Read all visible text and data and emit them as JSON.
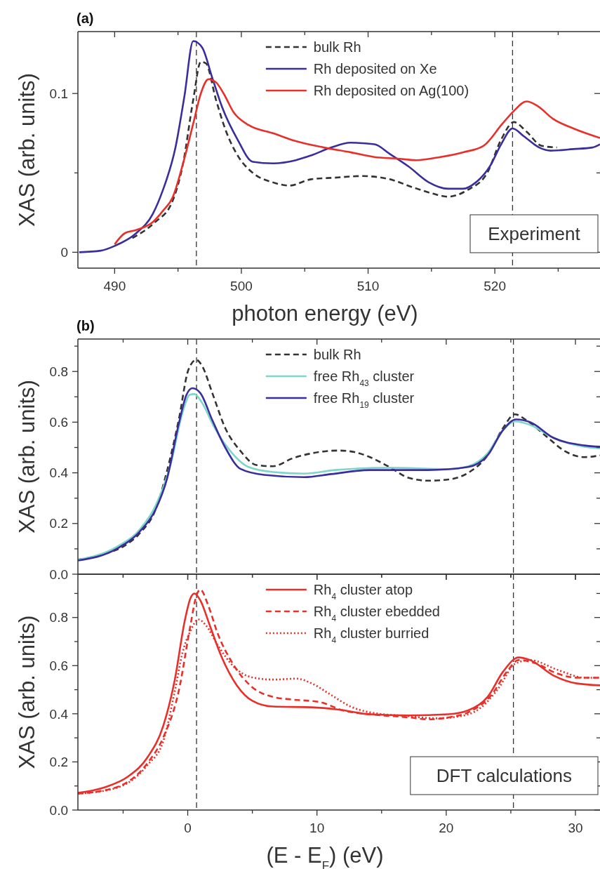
{
  "chart_data": [
    {
      "type": "line",
      "title": "(a)",
      "xlabel": "photon energy (eV)",
      "ylabel": "XAS (arb. units)",
      "xlim": [
        487.1,
        528.3
      ],
      "ylim": [
        -0.01,
        0.139
      ],
      "xticks": [
        490,
        {
          "value": 495,
          "label": null
        },
        500,
        {
          "value": 505,
          "label": null
        },
        510,
        {
          "value": 515,
          "label": null
        },
        520,
        {
          "value": 525,
          "label": null
        }
      ],
      "yticks": [
        0,
        {
          "value": 0.05,
          "label": null
        },
        0.1
      ],
      "legend": "top",
      "annotations": [
        "Experiment"
      ],
      "ref_lines": [
        {
          "axis": "x",
          "value": 496.45,
          "color": "#333333",
          "line_style": "dashed"
        },
        {
          "axis": "x",
          "value": 521.4,
          "color": "#333333",
          "line_style": "dashed"
        }
      ],
      "series": [
        {
          "name": "bulk Rh",
          "color": "#333333",
          "line_style": "dashed",
          "x": [
            491.4,
            493.2,
            494.5,
            495.4,
            496.2,
            496.8,
            497.2,
            498.0,
            498.8,
            499.7,
            500.9,
            502.5,
            503.8,
            505.5,
            507.4,
            509.5,
            511.7,
            513.5,
            515.1,
            516.3,
            517.8,
            519.4,
            520.5,
            521.5,
            522.5,
            523.7,
            524.9
          ],
          "values": [
            0.009,
            0.019,
            0.031,
            0.056,
            0.096,
            0.12,
            0.119,
            0.096,
            0.076,
            0.061,
            0.05,
            0.044,
            0.042,
            0.046,
            0.047,
            0.048,
            0.046,
            0.041,
            0.037,
            0.035,
            0.039,
            0.05,
            0.071,
            0.082,
            0.076,
            0.067,
            0.066
          ]
        },
        {
          "name": "Rh deposited on Xe",
          "color": "#3a2d9c",
          "line_style": "solid",
          "x": [
            487.2,
            488.9,
            490.0,
            491.7,
            493.0,
            493.8,
            494.8,
            495.5,
            496.2,
            496.9,
            497.7,
            498.5,
            499.7,
            500.9,
            502.5,
            504.3,
            505.5,
            507.1,
            508.6,
            510.5,
            511.7,
            513.2,
            514.8,
            516.3,
            517.5,
            518.5,
            519.6,
            520.5,
            521.4,
            522.3,
            523.5,
            524.4,
            526.2,
            527.7,
            528.3
          ],
          "values": [
            0,
            0.001,
            0.004,
            0.012,
            0.024,
            0.039,
            0.066,
            0.098,
            0.133,
            0.129,
            0.11,
            0.091,
            0.071,
            0.057,
            0.056,
            0.058,
            0.061,
            0.066,
            0.069,
            0.068,
            0.062,
            0.054,
            0.044,
            0.04,
            0.04,
            0.044,
            0.054,
            0.068,
            0.078,
            0.073,
            0.066,
            0.064,
            0.065,
            0.066,
            0.068
          ]
        },
        {
          "name": "Rh deposited on Ag(100)",
          "color": "#e8302a",
          "line_style": "solid",
          "x": [
            490.0,
            490.8,
            491.7,
            493.0,
            493.8,
            494.6,
            495.4,
            496.2,
            496.8,
            497.4,
            498.0,
            498.6,
            499.4,
            500.6,
            502.5,
            504.3,
            506.5,
            508.6,
            510.5,
            512.3,
            513.8,
            515.7,
            517.5,
            519.1,
            520.6,
            521.5,
            522.5,
            523.4,
            524.6,
            526.2,
            528.3
          ],
          "values": [
            0.005,
            0.012,
            0.014,
            0.019,
            0.026,
            0.035,
            0.056,
            0.081,
            0.1,
            0.109,
            0.107,
            0.1,
            0.088,
            0.08,
            0.075,
            0.07,
            0.066,
            0.063,
            0.06,
            0.059,
            0.058,
            0.06,
            0.063,
            0.067,
            0.081,
            0.089,
            0.095,
            0.092,
            0.084,
            0.078,
            0.072
          ]
        }
      ]
    },
    {
      "type": "line",
      "title": "(b)",
      "ylabel": "XAS (arb. units)",
      "xlim": [
        -8.5,
        31.9
      ],
      "ylim": [
        0,
        0.928
      ],
      "tick_labels": "y",
      "xticks": [
        {
          "value": -5,
          "label": null
        },
        0,
        {
          "value": 5,
          "label": null
        },
        10,
        {
          "value": 15,
          "label": null
        },
        20,
        {
          "value": 25,
          "label": null
        },
        30
      ],
      "yticks": [
        {
          "value": 0,
          "label": "0.0"
        },
        {
          "value": 0.1,
          "label": null
        },
        0.2,
        {
          "value": 0.3,
          "label": null
        },
        0.4,
        {
          "value": 0.5,
          "label": null
        },
        0.6,
        {
          "value": 0.7,
          "label": null
        },
        0.8,
        {
          "value": 0.9,
          "label": null
        }
      ],
      "legend": "top",
      "ref_lines": [
        {
          "axis": "x",
          "value": 0.68,
          "color": "#333333",
          "line_style": "dashed"
        },
        {
          "axis": "x",
          "value": 25.2,
          "color": "#333333",
          "line_style": "dashed"
        }
      ],
      "series": [
        {
          "name": "bulk Rh",
          "color": "#333333",
          "line_style": "dashed",
          "x": [
            -8.5,
            -6.7,
            -4.9,
            -3.7,
            -2.5,
            -1.6,
            -0.7,
            0.06,
            0.66,
            1.1,
            1.9,
            2.9,
            4.1,
            5.3,
            6.6,
            8.1,
            9.6,
            11.7,
            12.9,
            14.1,
            15.6,
            17.1,
            18.6,
            20.2,
            21.7,
            23.2,
            24.4,
            25.3,
            26.2,
            27.7,
            29.2,
            30.7,
            31.9
          ],
          "values": [
            0.057,
            0.077,
            0.112,
            0.162,
            0.254,
            0.408,
            0.608,
            0.808,
            0.846,
            0.823,
            0.715,
            0.577,
            0.485,
            0.431,
            0.426,
            0.457,
            0.477,
            0.488,
            0.482,
            0.462,
            0.423,
            0.38,
            0.369,
            0.374,
            0.4,
            0.469,
            0.577,
            0.631,
            0.608,
            0.546,
            0.485,
            0.462,
            0.469
          ]
        },
        {
          "name": "free Rh$_{43}$ cluster",
          "color": "#7dd6c9",
          "line_style": "solid",
          "x": [
            -8.5,
            -5.5,
            -3.7,
            -2.5,
            -1.3,
            -0.4,
            0.15,
            0.51,
            1.1,
            2.0,
            3.2,
            4.7,
            6.6,
            9.0,
            11.4,
            15.6,
            20.2,
            21.7,
            23.2,
            24.4,
            25.3,
            26.5,
            28.3,
            30.7,
            31.9
          ],
          "values": [
            0.057,
            0.108,
            0.177,
            0.269,
            0.438,
            0.638,
            0.708,
            0.711,
            0.677,
            0.585,
            0.492,
            0.423,
            0.403,
            0.397,
            0.411,
            0.42,
            0.415,
            0.426,
            0.477,
            0.569,
            0.603,
            0.589,
            0.538,
            0.503,
            0.497
          ]
        },
        {
          "name": "free Rh$_{19}$ cluster",
          "color": "#3a2d9c",
          "line_style": "solid",
          "x": [
            -8.5,
            -5.5,
            -3.7,
            -2.5,
            -1.6,
            -0.7,
            -0.1,
            0.36,
            0.97,
            1.9,
            2.9,
            4.1,
            5.9,
            9.0,
            11.1,
            14.1,
            18.6,
            21.7,
            23.2,
            24.4,
            25.4,
            26.5,
            28.3,
            30.7,
            31.9
          ],
          "values": [
            0.054,
            0.1,
            0.169,
            0.254,
            0.377,
            0.592,
            0.708,
            0.734,
            0.715,
            0.608,
            0.5,
            0.415,
            0.392,
            0.383,
            0.395,
            0.411,
            0.411,
            0.423,
            0.469,
            0.569,
            0.611,
            0.6,
            0.538,
            0.508,
            0.503
          ]
        }
      ]
    },
    {
      "type": "line",
      "xlabel": "(E - E$_{F}$) (eV)",
      "ylabel": "XAS (arb. units)",
      "xlim": [
        -8.5,
        31.9
      ],
      "ylim": [
        0,
        0.98
      ],
      "xticks": [
        {
          "value": -5,
          "label": null
        },
        0,
        {
          "value": 5,
          "label": null
        },
        10,
        {
          "value": 15,
          "label": null
        },
        20,
        {
          "value": 25,
          "label": null
        },
        30
      ],
      "yticks": [
        {
          "value": 0,
          "label": "0.0"
        },
        {
          "value": 0.1,
          "label": null
        },
        0.2,
        {
          "value": 0.3,
          "label": null
        },
        0.4,
        {
          "value": 0.5,
          "label": null
        },
        0.6,
        {
          "value": 0.7,
          "label": null
        },
        0.8,
        {
          "value": 0.9,
          "label": null
        }
      ],
      "legend": "top",
      "annotations": [
        "DFT calculations"
      ],
      "ref_lines": [
        {
          "axis": "x",
          "value": 0.68,
          "color": "#333333",
          "line_style": "dashed"
        },
        {
          "axis": "x",
          "value": 25.2,
          "color": "#333333",
          "line_style": "dashed"
        }
      ],
      "series": [
        {
          "name": "Rh$_{4}$ cluster atop",
          "color": "#e8302a",
          "line_style": "solid",
          "x": [
            -8.5,
            -6.4,
            -4.6,
            -3.1,
            -1.9,
            -1.0,
            -0.24,
            0.21,
            0.51,
            0.97,
            1.7,
            2.6,
            3.8,
            5.0,
            6.6,
            9.6,
            11.7,
            14.1,
            17.1,
            20.2,
            21.7,
            23.2,
            24.4,
            25.6,
            26.5,
            28.3,
            30.1,
            31.9
          ],
          "values": [
            0.071,
            0.095,
            0.14,
            0.22,
            0.349,
            0.542,
            0.784,
            0.88,
            0.9,
            0.872,
            0.768,
            0.639,
            0.518,
            0.454,
            0.43,
            0.427,
            0.417,
            0.398,
            0.393,
            0.398,
            0.414,
            0.47,
            0.575,
            0.634,
            0.623,
            0.559,
            0.526,
            0.518
          ]
        },
        {
          "name": "Rh$_{4}$ cluster ebedded",
          "color": "#e8302a",
          "line_style": "dashed",
          "x": [
            -8.5,
            -5.5,
            -3.1,
            -1.9,
            -0.7,
            0.21,
            0.66,
            0.97,
            1.6,
            2.3,
            3.5,
            5.0,
            6.6,
            8.1,
            10.2,
            12.0,
            14.1,
            17.1,
            18.6,
            20.2,
            21.7,
            23.5,
            24.7,
            25.6,
            26.8,
            28.6,
            30.1,
            31.9
          ],
          "values": [
            0.068,
            0.095,
            0.196,
            0.301,
            0.494,
            0.768,
            0.889,
            0.916,
            0.848,
            0.736,
            0.607,
            0.51,
            0.47,
            0.459,
            0.449,
            0.414,
            0.398,
            0.385,
            0.377,
            0.385,
            0.406,
            0.478,
            0.575,
            0.623,
            0.612,
            0.567,
            0.55,
            0.55
          ]
        },
        {
          "name": "Rh$_{4}$ cluster burried",
          "color": "#e8302a",
          "line_style": "dotted",
          "x": [
            -8.5,
            -5.5,
            -3.1,
            -1.9,
            -1.0,
            -0.4,
            0.21,
            0.82,
            1.4,
            2.3,
            3.5,
            5.0,
            6.6,
            8.4,
            9.6,
            11.1,
            12.6,
            14.1,
            17.1,
            19.2,
            21.1,
            22.6,
            24.1,
            25.3,
            26.5,
            28.6,
            30.7,
            31.9
          ],
          "values": [
            0.068,
            0.092,
            0.188,
            0.285,
            0.494,
            0.655,
            0.744,
            0.792,
            0.768,
            0.687,
            0.599,
            0.551,
            0.542,
            0.546,
            0.526,
            0.478,
            0.43,
            0.406,
            0.39,
            0.381,
            0.39,
            0.422,
            0.51,
            0.607,
            0.623,
            0.583,
            0.55,
            0.55
          ]
        }
      ]
    }
  ]
}
